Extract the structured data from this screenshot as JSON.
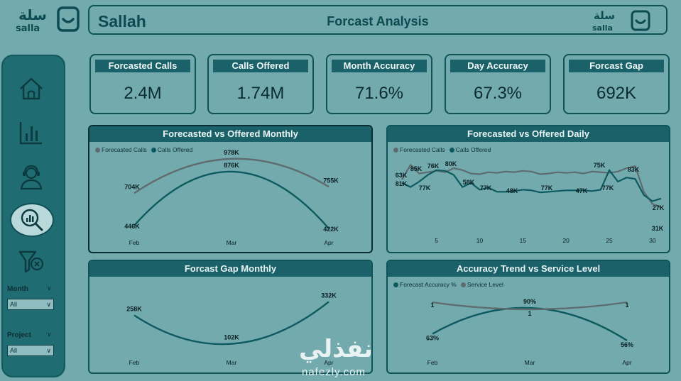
{
  "logo": {
    "arabic": "سلة",
    "brand": "salla"
  },
  "header": {
    "title_left": "Sallah",
    "title_center": "Forcast Analysis",
    "logo_arabic": "سلة",
    "logo_brand": "salla"
  },
  "nav": {
    "icons": [
      "home-icon",
      "bar-chart-icon",
      "support-agent-icon",
      "search-analytics-icon",
      "filter-clear-icon"
    ]
  },
  "filters": [
    {
      "label": "Month",
      "value": "All"
    },
    {
      "label": "Project",
      "value": "All"
    }
  ],
  "kpis": [
    {
      "label": "Forcasted Calls",
      "value": "2.4M"
    },
    {
      "label": "Calls Offered",
      "value": "1.74M"
    },
    {
      "label": "Month Accuracy",
      "value": "71.6%"
    },
    {
      "label": "Day Accuracy",
      "value": "67.3%"
    },
    {
      "label": "Forcast Gap",
      "value": "692K"
    }
  ],
  "colors": {
    "series_gray": "#5e6c6f",
    "series_teal": "#0d5a61",
    "panel_header": "#1a6169",
    "background": "#72aaae"
  },
  "watermark": {
    "arabic": "نفذلي",
    "latin": "nafezly.com"
  },
  "chart_data": [
    {
      "type": "line",
      "title": "Forecasted vs Offered Monthly",
      "categories": [
        "Feb",
        "Mar",
        "Apr"
      ],
      "series": [
        {
          "name": "Forecasted Calls",
          "values": [
            704,
            978,
            755
          ],
          "labels": [
            "704K",
            "978K",
            "755K"
          ]
        },
        {
          "name": "Calls Offered",
          "values": [
            446,
            876,
            422
          ],
          "labels": [
            "446K",
            "876K",
            "422K"
          ]
        }
      ],
      "ylim": [
        400,
        1000
      ],
      "legend": "top-left"
    },
    {
      "type": "line",
      "title": "Forecasted vs Offered Daily",
      "x_ticks": [
        "5",
        "10",
        "15",
        "20",
        "25",
        "30"
      ],
      "x_range": [
        1,
        31
      ],
      "series": [
        {
          "name": "Forecasted Calls",
          "x": [
            1,
            2,
            3,
            4,
            5,
            6,
            7,
            8,
            9,
            10,
            11,
            12,
            13,
            14,
            15,
            16,
            17,
            18,
            19,
            20,
            21,
            22,
            23,
            24,
            25,
            26,
            27,
            28,
            29,
            30,
            31
          ],
          "values": [
            63,
            85,
            72,
            74,
            76,
            74,
            80,
            77,
            72,
            71,
            74,
            73,
            75,
            74,
            76,
            75,
            71,
            72,
            74,
            73,
            74,
            72,
            75,
            74,
            73,
            75,
            80,
            83,
            45,
            27,
            22
          ]
        },
        {
          "name": "Calls Offered",
          "x": [
            1,
            2,
            3,
            4,
            5,
            6,
            7,
            8,
            9,
            10,
            11,
            12,
            13,
            14,
            15,
            16,
            17,
            18,
            19,
            20,
            21,
            22,
            23,
            24,
            25,
            26,
            27,
            28,
            29,
            30,
            31
          ],
          "values": [
            58,
            52,
            60,
            70,
            77,
            76,
            70,
            52,
            58,
            48,
            51,
            45,
            45,
            46,
            48,
            47,
            44,
            45,
            46,
            47,
            47,
            47,
            46,
            48,
            77,
            60,
            66,
            64,
            40,
            31,
            35
          ]
        }
      ],
      "data_labels": [
        "63K",
        "81K",
        "85K",
        "77K",
        "76K",
        "80K",
        "58K",
        "77K",
        "48K",
        "77K",
        "47K",
        "75K",
        "77K",
        "83K",
        "27K",
        "31K"
      ],
      "ylim": [
        0,
        100
      ],
      "legend": "top-left"
    },
    {
      "type": "line",
      "title": "Forcast Gap Monthly",
      "categories": [
        "Feb",
        "Mar",
        "Apr"
      ],
      "series": [
        {
          "name": "Forcast Gap",
          "values": [
            258,
            102,
            332
          ],
          "labels": [
            "258K",
            "102K",
            "332K"
          ]
        }
      ],
      "ylim": [
        50,
        380
      ]
    },
    {
      "type": "line",
      "title": "Accuracy Trend vs Service Level",
      "categories": [
        "Feb",
        "Mar",
        "Apr"
      ],
      "series": [
        {
          "name": "Forecast Accuracy %",
          "values": [
            63,
            90,
            56
          ],
          "labels": [
            "63%",
            "90%",
            "56%"
          ]
        },
        {
          "name": "Service Level",
          "values": [
            1,
            1,
            1
          ],
          "labels": [
            "1",
            "1",
            "1"
          ]
        }
      ],
      "legend": "top-left"
    }
  ]
}
